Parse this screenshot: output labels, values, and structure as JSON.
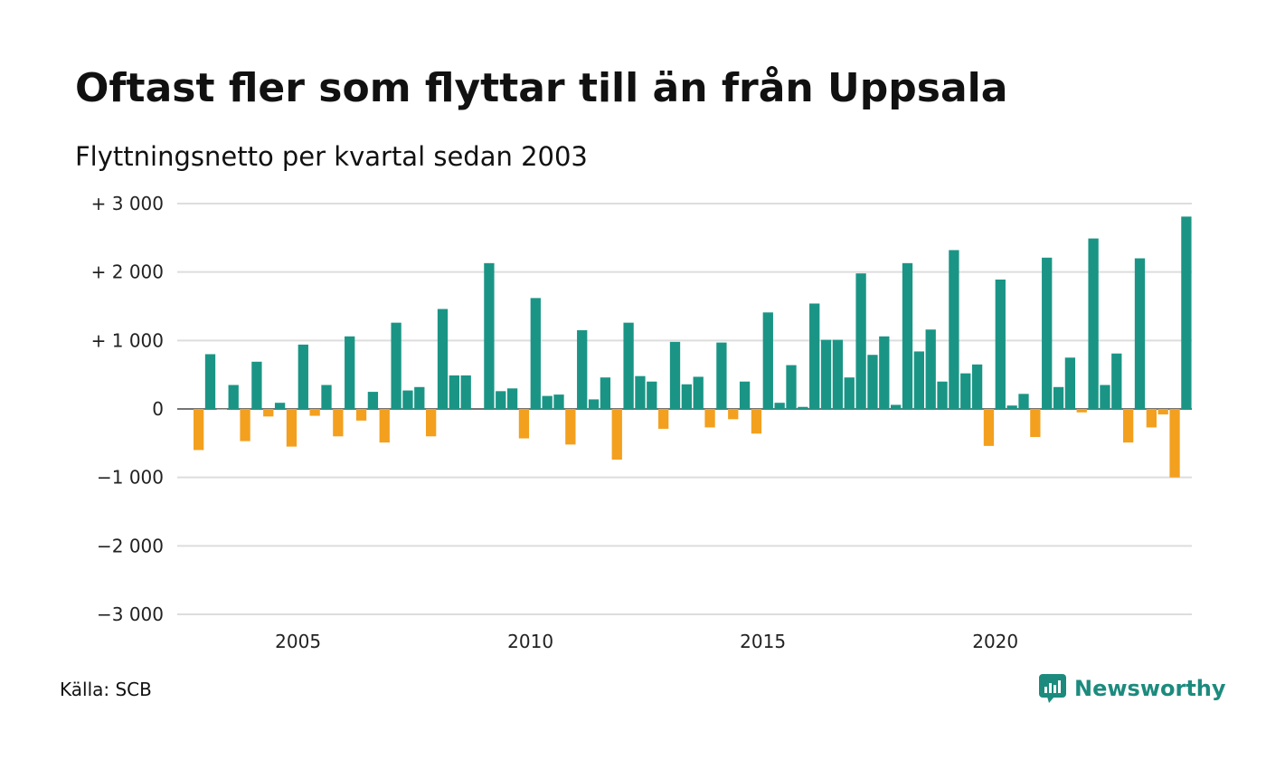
{
  "title": "Oftast fler som flyttar till än från Uppsala",
  "subtitle": "Flyttningsnetto per kvartal sedan 2003",
  "source": "Källa: SCB",
  "brand": {
    "name": "Newsworthy",
    "icon": "newsworthy-logo-icon",
    "color": "#1c8b7e"
  },
  "colors": {
    "positive": "#1a9585",
    "negative": "#f3a01e",
    "grid": "#dddddd",
    "zero": "#222222"
  },
  "chart_data": {
    "type": "bar",
    "title": "Oftast fler som flyttar till än från Uppsala",
    "subtitle": "Flyttningsnetto per kvartal sedan 2003",
    "xlabel": "",
    "ylabel": "",
    "ylim": [
      -3000,
      3000
    ],
    "y_ticks": [
      3000,
      2000,
      1000,
      0,
      -1000,
      -2000,
      -3000
    ],
    "y_tick_labels": [
      "+ 3 000",
      "+ 2 000",
      "+ 1 000",
      "0",
      "−1 000",
      "−2 000",
      "−3 000"
    ],
    "x_ticks": [
      2005,
      2010,
      2015,
      2020
    ],
    "x_tick_labels": [
      "2005",
      "2010",
      "2015",
      "2020"
    ],
    "grid": true,
    "start": {
      "year": 2003,
      "quarter": 2
    },
    "values": [
      -600,
      800,
      -10,
      350,
      -470,
      690,
      -110,
      90,
      -550,
      940,
      -100,
      350,
      -400,
      1060,
      -170,
      250,
      -490,
      1260,
      270,
      320,
      -400,
      1460,
      490,
      490,
      0,
      2130,
      260,
      300,
      -430,
      1620,
      190,
      210,
      -520,
      1150,
      140,
      460,
      -740,
      1260,
      480,
      400,
      -290,
      980,
      360,
      470,
      -270,
      970,
      -150,
      400,
      -360,
      1410,
      90,
      640,
      30,
      1540,
      1010,
      1010,
      460,
      1980,
      790,
      1060,
      60,
      2130,
      840,
      1160,
      400,
      2320,
      520,
      650,
      -540,
      1890,
      50,
      220,
      -410,
      2210,
      320,
      750,
      -50,
      2490,
      350,
      810,
      -490,
      2200,
      -270,
      -80,
      -1000,
      2810
    ]
  }
}
